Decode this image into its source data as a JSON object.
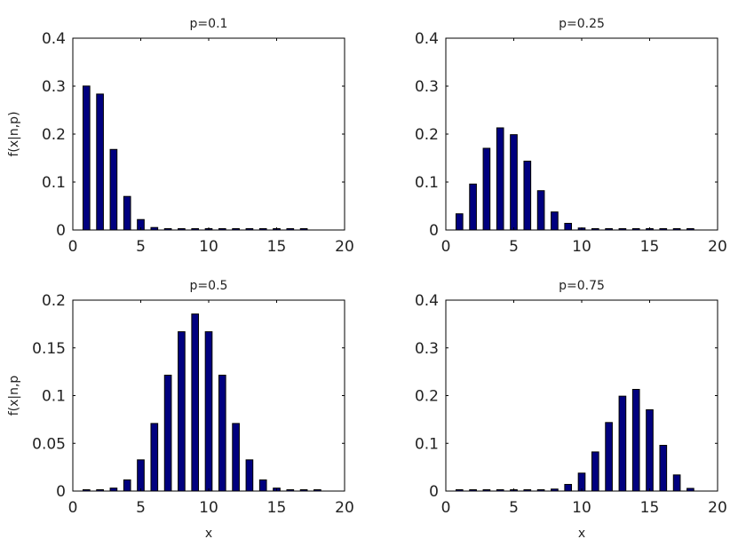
{
  "chart_data": [
    {
      "type": "bar",
      "title": "p=0.1",
      "xlabel": "",
      "ylabel": "f(x|n,p)",
      "xlim": [
        0,
        20
      ],
      "ylim": [
        0,
        0.4
      ],
      "xticks": [
        "0",
        "5",
        "10",
        "15",
        "20"
      ],
      "yticks": [
        "0",
        "0.1",
        "0.2",
        "0.3",
        "0.4"
      ],
      "x": [
        1,
        2,
        3,
        4,
        5,
        6,
        7,
        8,
        9,
        10,
        11,
        12,
        13,
        14,
        15,
        16,
        17
      ],
      "values": [
        0.3002,
        0.2835,
        0.168,
        0.07,
        0.0218,
        0.0052,
        0.001,
        0.0002,
        0,
        0,
        0,
        0,
        0,
        0,
        0,
        0,
        0
      ]
    },
    {
      "type": "bar",
      "title": "p=0.25",
      "xlabel": "",
      "ylabel": "",
      "xlim": [
        0,
        20
      ],
      "ylim": [
        0,
        0.4
      ],
      "xticks": [
        "0",
        "5",
        "10",
        "15",
        "20"
      ],
      "yticks": [
        "0",
        "0.1",
        "0.2",
        "0.3",
        "0.4"
      ],
      "x": [
        1,
        2,
        3,
        4,
        5,
        6,
        7,
        8,
        9,
        10,
        11,
        12,
        13,
        14,
        15,
        16,
        17,
        18
      ],
      "values": [
        0.0338,
        0.0958,
        0.1704,
        0.213,
        0.1988,
        0.1436,
        0.082,
        0.0376,
        0.0139,
        0.0042,
        0.001,
        0.0002,
        0,
        0,
        0,
        0,
        0,
        0
      ]
    },
    {
      "type": "bar",
      "title": "p=0.5",
      "xlabel": "x",
      "ylabel": "f(x|n,p",
      "xlim": [
        0,
        20
      ],
      "ylim": [
        0,
        0.2
      ],
      "xticks": [
        "0",
        "5",
        "10",
        "15",
        "20"
      ],
      "yticks": [
        "0",
        "0.05",
        "0.1",
        "0.15",
        "0.2"
      ],
      "x": [
        1,
        2,
        3,
        4,
        5,
        6,
        7,
        8,
        9,
        10,
        11,
        12,
        13,
        14,
        15,
        16,
        17,
        18
      ],
      "values": [
        0.0001,
        0.0006,
        0.0031,
        0.0117,
        0.0327,
        0.0708,
        0.1214,
        0.1669,
        0.1855,
        0.1669,
        0.1214,
        0.0708,
        0.0327,
        0.0117,
        0.0031,
        0.0006,
        0.0001,
        0
      ]
    },
    {
      "type": "bar",
      "title": "p=0.75",
      "xlabel": "x",
      "ylabel": "",
      "xlim": [
        0,
        20
      ],
      "ylim": [
        0,
        0.4
      ],
      "xticks": [
        "0",
        "5",
        "10",
        "15",
        "20"
      ],
      "yticks": [
        "0",
        "0.1",
        "0.2",
        "0.3",
        "0.4"
      ],
      "x": [
        1,
        2,
        3,
        4,
        5,
        6,
        7,
        8,
        9,
        10,
        11,
        12,
        13,
        14,
        15,
        16,
        17,
        18
      ],
      "values": [
        0,
        0,
        0,
        0,
        0,
        0.0002,
        0.001,
        0.0042,
        0.0139,
        0.0376,
        0.082,
        0.1436,
        0.1988,
        0.213,
        0.1704,
        0.0958,
        0.0338,
        0.0056
      ]
    }
  ],
  "colors": {
    "bar_fill": "#00007f",
    "bar_edge": "#000000",
    "axes": "#000000"
  }
}
